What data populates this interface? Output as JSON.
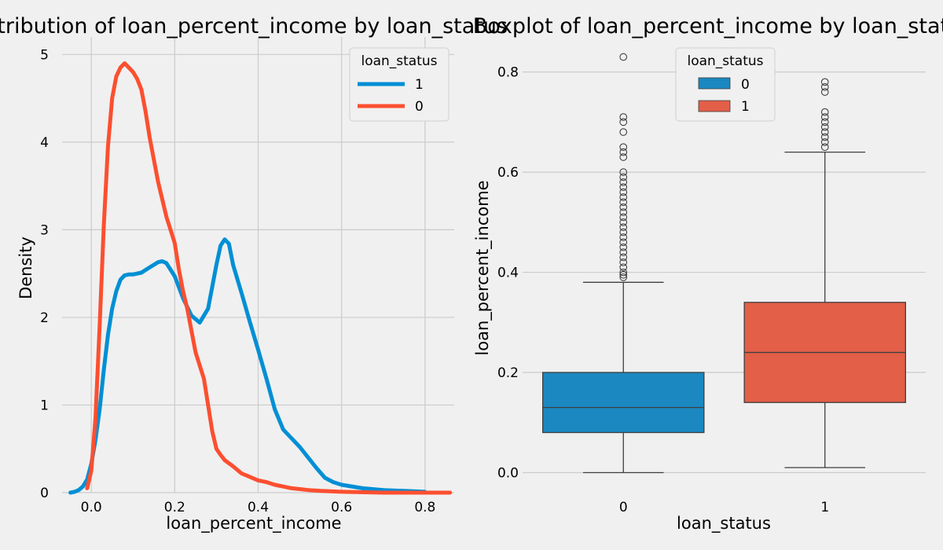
{
  "chart_data": [
    {
      "type": "line",
      "chart_kind": "kde",
      "title": "Distribution of loan_percent_income by loan_status",
      "xlabel": "loan_percent_income",
      "ylabel": "Density",
      "xlim": [
        -0.07,
        0.87
      ],
      "ylim": [
        0,
        5.2
      ],
      "xticks": [
        0.0,
        0.2,
        0.4,
        0.6,
        0.8
      ],
      "xtick_labels": [
        "0.0",
        "0.2",
        "0.4",
        "0.6",
        "0.8"
      ],
      "yticks": [
        0,
        1,
        2,
        3,
        4,
        5
      ],
      "ytick_labels": [
        "0",
        "1",
        "2",
        "3",
        "4",
        "5"
      ],
      "grid": true,
      "legend": {
        "title": "loan_status",
        "position": "top-right"
      },
      "series": [
        {
          "name": "1",
          "color": "#008fd5",
          "x": [
            -0.05,
            -0.04,
            -0.03,
            -0.02,
            -0.01,
            0.0,
            0.01,
            0.02,
            0.03,
            0.04,
            0.05,
            0.06,
            0.07,
            0.08,
            0.09,
            0.1,
            0.12,
            0.14,
            0.16,
            0.17,
            0.18,
            0.2,
            0.22,
            0.24,
            0.26,
            0.28,
            0.3,
            0.31,
            0.32,
            0.33,
            0.34,
            0.36,
            0.38,
            0.4,
            0.42,
            0.44,
            0.46,
            0.48,
            0.5,
            0.52,
            0.54,
            0.56,
            0.58,
            0.6,
            0.65,
            0.7,
            0.75,
            0.8
          ],
          "y": [
            0.0,
            0.01,
            0.03,
            0.07,
            0.15,
            0.33,
            0.6,
            0.95,
            1.4,
            1.8,
            2.1,
            2.3,
            2.43,
            2.48,
            2.49,
            2.49,
            2.51,
            2.57,
            2.63,
            2.64,
            2.62,
            2.47,
            2.22,
            2.02,
            1.94,
            2.1,
            2.6,
            2.82,
            2.89,
            2.84,
            2.6,
            2.28,
            1.95,
            1.63,
            1.3,
            0.95,
            0.72,
            0.62,
            0.52,
            0.4,
            0.28,
            0.17,
            0.12,
            0.09,
            0.05,
            0.03,
            0.02,
            0.01
          ]
        },
        {
          "name": "0",
          "color": "#fc4f30",
          "x": [
            -0.01,
            0.0,
            0.01,
            0.02,
            0.03,
            0.04,
            0.05,
            0.06,
            0.07,
            0.08,
            0.09,
            0.1,
            0.11,
            0.12,
            0.13,
            0.14,
            0.16,
            0.18,
            0.19,
            0.2,
            0.21,
            0.22,
            0.23,
            0.24,
            0.25,
            0.26,
            0.27,
            0.28,
            0.29,
            0.3,
            0.31,
            0.32,
            0.34,
            0.36,
            0.38,
            0.4,
            0.42,
            0.44,
            0.46,
            0.48,
            0.5,
            0.52,
            0.55,
            0.6,
            0.7,
            0.8,
            0.86
          ],
          "y": [
            0.05,
            0.25,
            0.85,
            1.9,
            3.05,
            3.95,
            4.5,
            4.75,
            4.85,
            4.9,
            4.85,
            4.8,
            4.72,
            4.6,
            4.35,
            4.05,
            3.55,
            3.15,
            3.0,
            2.85,
            2.55,
            2.3,
            2.1,
            1.85,
            1.6,
            1.45,
            1.3,
            1.0,
            0.7,
            0.5,
            0.43,
            0.37,
            0.3,
            0.22,
            0.18,
            0.14,
            0.12,
            0.09,
            0.07,
            0.05,
            0.04,
            0.03,
            0.02,
            0.01,
            0.0,
            0.0,
            0.0
          ]
        }
      ]
    },
    {
      "type": "box",
      "title": "Boxplot of loan_percent_income by loan_status",
      "xlabel": "loan_status",
      "ylabel": "loan_percent_income",
      "categories": [
        "0",
        "1"
      ],
      "ylim": [
        -0.04,
        0.87
      ],
      "yticks": [
        0.0,
        0.2,
        0.4,
        0.6,
        0.8
      ],
      "ytick_labels": [
        "0.0",
        "0.2",
        "0.4",
        "0.6",
        "0.8"
      ],
      "grid": true,
      "legend": {
        "title": "loan_status",
        "position": "upper-center"
      },
      "boxes": [
        {
          "name": "0",
          "color": "#1b88c1",
          "whisker_low": 0.0,
          "q1": 0.08,
          "median": 0.13,
          "q3": 0.2,
          "whisker_high": 0.38,
          "outliers": [
            0.39,
            0.395,
            0.4,
            0.41,
            0.42,
            0.43,
            0.44,
            0.45,
            0.46,
            0.47,
            0.48,
            0.49,
            0.5,
            0.51,
            0.52,
            0.53,
            0.54,
            0.55,
            0.56,
            0.57,
            0.58,
            0.59,
            0.6,
            0.63,
            0.64,
            0.65,
            0.68,
            0.7,
            0.71,
            0.83
          ]
        },
        {
          "name": "1",
          "color": "#e35f47",
          "whisker_low": 0.01,
          "q1": 0.14,
          "median": 0.24,
          "q3": 0.34,
          "whisker_high": 0.64,
          "outliers": [
            0.65,
            0.66,
            0.67,
            0.68,
            0.69,
            0.7,
            0.71,
            0.72,
            0.76,
            0.77,
            0.78
          ]
        }
      ]
    }
  ]
}
